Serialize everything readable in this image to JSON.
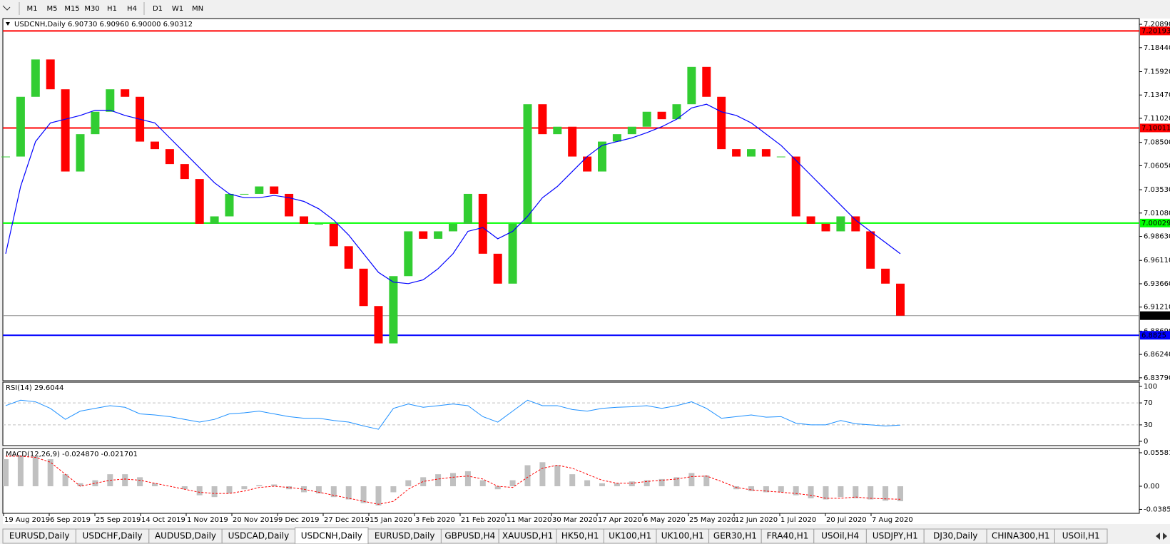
{
  "toolbar": [
    "M1",
    "M5",
    "M15",
    "M30",
    "H1",
    "H4",
    "D1",
    "W1",
    "MN"
  ],
  "tabs": [
    "EURUSD,Daily",
    "USDCHF,Daily",
    "AUDUSD,Daily",
    "USDCAD,Daily",
    "USDCNH,Daily",
    "EURUSD,Daily",
    "GBPUSD,H4",
    "XAUUSD,H1",
    "HK50,H1",
    "UK100,H1",
    "UK100,H1",
    "GER30,H1",
    "FRA40,H1",
    "USOil,H4",
    "USDJPY,H1",
    "DJ30,Daily",
    "CHINA300,H1",
    "USOil,H1"
  ],
  "active_tab": 4,
  "chart_data": [
    {
      "type": "candlestick",
      "title": "USDCNH,Daily  6.90730 6.90960 6.90000 6.90312",
      "ylim": [
        6.8348,
        7.2127
      ],
      "yticks": [
        {
          "value": 7.2089,
          "label": "7.20890"
        },
        {
          "value": 7.1844,
          "label": "7.18440"
        },
        {
          "value": 7.1592,
          "label": "7.15920"
        },
        {
          "value": 7.1347,
          "label": "7.13470"
        },
        {
          "value": 7.1102,
          "label": "7.11020"
        },
        {
          "value": 7.085,
          "label": "7.08500"
        },
        {
          "value": 7.0605,
          "label": "7.06050"
        },
        {
          "value": 7.0353,
          "label": "7.03530"
        },
        {
          "value": 7.0108,
          "label": "7.01080"
        },
        {
          "value": 6.9863,
          "label": "6.98630"
        },
        {
          "value": 6.9611,
          "label": "6.96110"
        },
        {
          "value": 6.9366,
          "label": "6.93660"
        },
        {
          "value": 6.9121,
          "label": "6.91210"
        },
        {
          "value": 6.8869,
          "label": "6.88690"
        },
        {
          "value": 6.8624,
          "label": "6.86240"
        },
        {
          "value": 6.8379,
          "label": "6.83790"
        }
      ],
      "x_labels": [
        "19 Aug 2019",
        "6 Sep 2019",
        "25 Sep 2019",
        "14 Oct 2019",
        "1 Nov 2019",
        "20 Nov 2019",
        "9 Dec 2019",
        "27 Dec 2019",
        "15 Jan 2020",
        "3 Feb 2020",
        "21 Feb 2020",
        "11 Mar 2020",
        "30 Mar 2020",
        "17 Apr 2020",
        "6 May 2020",
        "25 May 2020",
        "12 Jun 2020",
        "1 Jul 2020",
        "20 Jul 2020",
        "7 Aug 2020"
      ],
      "up_color": "#32cd32",
      "down_color": "#ff0000",
      "values": [
        7.0701,
        7.1328,
        7.172,
        7.1407,
        7.0544,
        7.0936,
        7.1171,
        7.1407,
        7.1328,
        7.0858,
        7.0779,
        7.0622,
        7.0465,
        6.9995,
        7.0073,
        7.0309,
        7.0309,
        7.0387,
        7.0309,
        7.0073,
        6.9995,
        6.9995,
        6.976,
        6.9524,
        6.9132,
        6.874,
        6.9446,
        6.9916,
        6.9838,
        6.9916,
        6.9995,
        7.0309,
        6.9681,
        6.9367,
        6.9995,
        7.125,
        7.0936,
        7.1014,
        7.0701,
        7.0544,
        7.0858,
        7.0936,
        7.1014,
        7.1171,
        7.1093,
        7.125,
        7.1642,
        7.1328,
        7.0779,
        7.0701,
        7.0779,
        7.0701,
        7.0701,
        7.0073,
        6.9995,
        6.9916,
        7.0073,
        6.9916,
        6.9524,
        6.9367,
        6.9031
      ],
      "lines": [
        {
          "color": "#0000ff",
          "values": [
            6.9681,
            7.0387,
            7.0858,
            7.1054,
            7.1093,
            7.1132,
            7.1187,
            7.1187,
            7.1132,
            7.1093,
            7.1054,
            7.0897,
            7.074,
            7.0583,
            7.0426,
            7.0309,
            7.0269,
            7.0269,
            7.0293,
            7.0269,
            7.023,
            7.0152,
            7.0034,
            6.9877,
            6.9681,
            6.9485,
            6.9383,
            6.9367,
            6.9407,
            6.9524,
            6.9681,
            6.9916,
            6.9956,
            6.9838,
            6.9916,
            7.0073,
            7.0269,
            7.0387,
            7.0544,
            7.0701,
            7.0818,
            7.0858,
            7.0897,
            7.0952,
            7.1014,
            7.1093,
            7.1211,
            7.125,
            7.1171,
            7.1132,
            7.1054,
            7.0936,
            7.0818,
            7.0662,
            7.0505,
            7.0348,
            7.0191,
            7.0034,
            6.9916,
            6.9799,
            6.9681
          ]
        }
      ],
      "levels": [
        {
          "value": 7.20193,
          "color": "#ff0000"
        },
        {
          "value": 7.10011,
          "color": "#ff0000"
        },
        {
          "value": 7.00029,
          "color": "#00ff00"
        },
        {
          "value": 6.8825,
          "color": "#0000ff"
        },
        {
          "value": 6.90312,
          "color": "#000000"
        }
      ]
    },
    {
      "type": "line",
      "title": "RSI(14) 29.6044",
      "ylim": [
        -7.8,
        107.8
      ],
      "yticks": [
        100,
        70,
        30,
        0
      ],
      "color": "#1e90ff",
      "values": [
        65,
        75,
        72,
        60,
        40,
        55,
        60,
        65,
        62,
        50,
        48,
        45,
        40,
        35,
        40,
        50,
        52,
        55,
        50,
        45,
        42,
        42,
        38,
        35,
        28,
        22,
        60,
        68,
        62,
        65,
        68,
        65,
        45,
        35,
        55,
        75,
        65,
        65,
        58,
        55,
        60,
        62,
        63,
        65,
        60,
        65,
        72,
        60,
        42,
        45,
        48,
        44,
        45,
        33,
        30,
        30,
        38,
        32,
        30,
        28,
        29.6
      ]
    },
    {
      "type": "macd",
      "title": "MACD(12,26,9) -0.024870 -0.021701",
      "ylim": [
        -0.0451,
        0.0629
      ],
      "yticks": [
        0.05581,
        {
          "value": 0,
          "label": "0.00"
        },
        -0.038524
      ],
      "series": [
        {
          "kind": "bar",
          "color": "#c0c0c0",
          "values": [
            0.045,
            0.05,
            0.05,
            0.045,
            0.02,
            0.005,
            0.01,
            0.02,
            0.02,
            0.015,
            0.005,
            0,
            -0.005,
            -0.015,
            -0.018,
            -0.012,
            -0.005,
            0.002,
            0.003,
            -0.005,
            -0.01,
            -0.012,
            -0.018,
            -0.022,
            -0.028,
            -0.032,
            -0.01,
            0.01,
            0.015,
            0.02,
            0.022,
            0.025,
            0.01,
            -0.005,
            0.01,
            0.035,
            0.04,
            0.035,
            0.02,
            0.01,
            0.005,
            0.005,
            0.008,
            0.01,
            0.012,
            0.015,
            0.022,
            0.018,
            0,
            -0.005,
            -0.008,
            -0.01,
            -0.01,
            -0.015,
            -0.02,
            -0.022,
            -0.018,
            -0.02,
            -0.022,
            -0.024,
            -0.02487
          ]
        },
        {
          "kind": "line",
          "color": "#ff0000",
          "values": [
            0.05,
            0.05,
            0.048,
            0.04,
            0.02,
            0,
            0.005,
            0.01,
            0.012,
            0.01,
            0.005,
            0,
            -0.005,
            -0.01,
            -0.012,
            -0.012,
            -0.008,
            -0.002,
            0,
            -0.002,
            -0.005,
            -0.01,
            -0.015,
            -0.02,
            -0.025,
            -0.03,
            -0.025,
            -0.005,
            0.008,
            0.012,
            0.015,
            0.017,
            0.012,
            0,
            -0.002,
            0.015,
            0.03,
            0.035,
            0.03,
            0.02,
            0.01,
            0.005,
            0.005,
            0.008,
            0.01,
            0.012,
            0.016,
            0.017,
            0.008,
            -0.002,
            -0.006,
            -0.008,
            -0.01,
            -0.012,
            -0.015,
            -0.02,
            -0.02,
            -0.018,
            -0.02,
            -0.021,
            -0.021701
          ]
        }
      ]
    }
  ]
}
